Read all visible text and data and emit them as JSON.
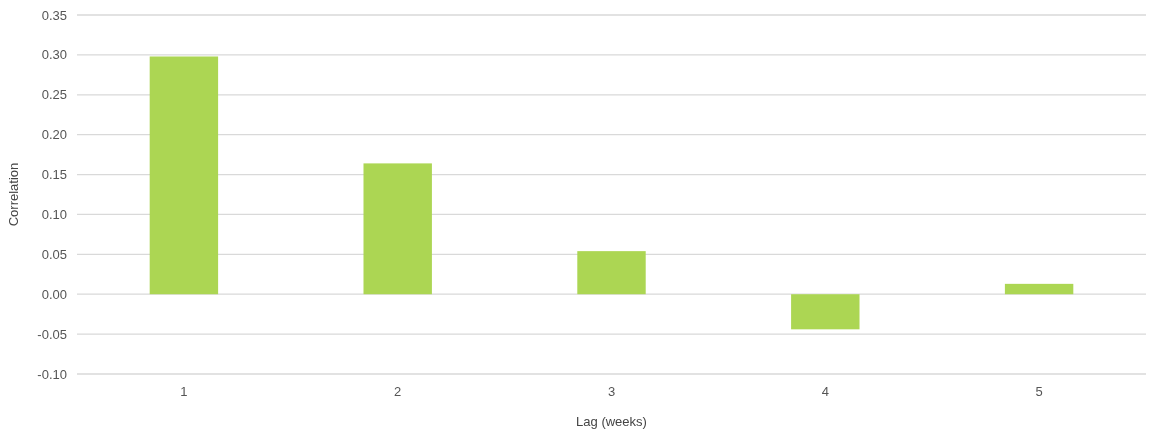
{
  "chart_data": {
    "type": "bar",
    "xlabel": "Lag (weeks)",
    "ylabel": "Correlation",
    "categories": [
      "1",
      "2",
      "3",
      "4",
      "5"
    ],
    "values": [
      0.298,
      0.164,
      0.054,
      -0.044,
      0.013
    ],
    "color": "#acd653",
    "ylim": [
      -0.1,
      0.35
    ],
    "yticks": [
      {
        "value": -0.1,
        "label": "-0.10"
      },
      {
        "value": -0.05,
        "label": "-0.05"
      },
      {
        "value": 0,
        "label": "0.00"
      },
      {
        "value": 0.05,
        "label": "0.05"
      },
      {
        "value": 0.1,
        "label": "0.10"
      },
      {
        "value": 0.15,
        "label": "0.15"
      },
      {
        "value": 0.2,
        "label": "0.20"
      },
      {
        "value": 0.25,
        "label": "0.25"
      },
      {
        "value": 0.3,
        "label": "0.30"
      },
      {
        "value": 0.35,
        "label": "0.35"
      }
    ],
    "grid": "y"
  }
}
